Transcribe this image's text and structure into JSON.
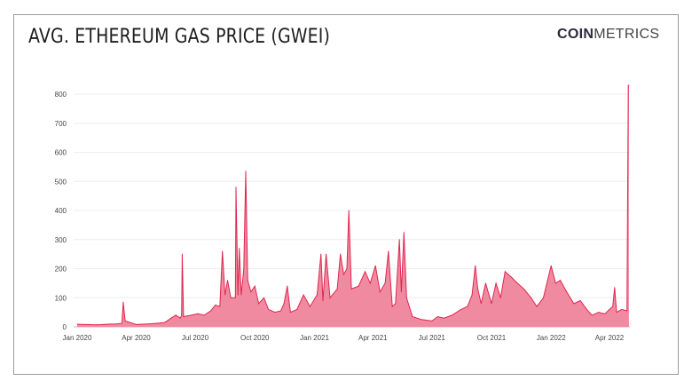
{
  "header": {
    "title": "AVG. ETHEREUM GAS PRICE (GWEI)",
    "logo_bold": "COIN",
    "logo_light": "METRICS"
  },
  "colors": {
    "fill": "#f08aa0",
    "line": "#e0264f",
    "grid": "#eeeeee"
  },
  "chart_data": {
    "type": "area",
    "title": "AVG. ETHEREUM GAS PRICE (GWEI)",
    "xlabel": "",
    "ylabel": "",
    "ylim": [
      0,
      800
    ],
    "yticks": [
      0,
      100,
      200,
      300,
      400,
      500,
      600,
      700,
      800
    ],
    "xticks": [
      {
        "date": "2020-01-01",
        "label": "Jan 2020"
      },
      {
        "date": "2020-04-01",
        "label": "Apr 2020"
      },
      {
        "date": "2020-07-01",
        "label": "Jul 2020"
      },
      {
        "date": "2020-10-01",
        "label": "Oct 2020"
      },
      {
        "date": "2021-01-01",
        "label": "Jan 2021"
      },
      {
        "date": "2021-04-01",
        "label": "Apr 2021"
      },
      {
        "date": "2021-07-01",
        "label": "Jul 2021"
      },
      {
        "date": "2021-10-01",
        "label": "Oct 2021"
      },
      {
        "date": "2022-01-01",
        "label": "Jan 2022"
      },
      {
        "date": "2022-04-01",
        "label": "Apr 2022"
      }
    ],
    "grid": true,
    "series": [
      {
        "points": [
          [
            "2020-01-01",
            9
          ],
          [
            "2020-01-15",
            8
          ],
          [
            "2020-02-01",
            7
          ],
          [
            "2020-02-15",
            9
          ],
          [
            "2020-03-01",
            10
          ],
          [
            "2020-03-10",
            12
          ],
          [
            "2020-03-12",
            85
          ],
          [
            "2020-03-15",
            20
          ],
          [
            "2020-04-01",
            8
          ],
          [
            "2020-04-20",
            10
          ],
          [
            "2020-05-01",
            12
          ],
          [
            "2020-05-15",
            15
          ],
          [
            "2020-05-25",
            30
          ],
          [
            "2020-06-01",
            40
          ],
          [
            "2020-06-08",
            30
          ],
          [
            "2020-06-10",
            40
          ],
          [
            "2020-06-11",
            250
          ],
          [
            "2020-06-13",
            35
          ],
          [
            "2020-06-25",
            40
          ],
          [
            "2020-07-05",
            45
          ],
          [
            "2020-07-15",
            40
          ],
          [
            "2020-07-25",
            55
          ],
          [
            "2020-08-01",
            75
          ],
          [
            "2020-08-08",
            70
          ],
          [
            "2020-08-12",
            260
          ],
          [
            "2020-08-16",
            110
          ],
          [
            "2020-08-20",
            160
          ],
          [
            "2020-08-25",
            100
          ],
          [
            "2020-09-01",
            100
          ],
          [
            "2020-09-02",
            480
          ],
          [
            "2020-09-05",
            110
          ],
          [
            "2020-09-07",
            270
          ],
          [
            "2020-09-10",
            110
          ],
          [
            "2020-09-14",
            200
          ],
          [
            "2020-09-17",
            535
          ],
          [
            "2020-09-20",
            160
          ],
          [
            "2020-09-25",
            120
          ],
          [
            "2020-10-01",
            140
          ],
          [
            "2020-10-07",
            80
          ],
          [
            "2020-10-15",
            100
          ],
          [
            "2020-10-22",
            60
          ],
          [
            "2020-11-01",
            50
          ],
          [
            "2020-11-10",
            55
          ],
          [
            "2020-11-15",
            80
          ],
          [
            "2020-11-20",
            140
          ],
          [
            "2020-11-25",
            50
          ],
          [
            "2020-12-05",
            60
          ],
          [
            "2020-12-15",
            110
          ],
          [
            "2020-12-25",
            70
          ],
          [
            "2021-01-05",
            110
          ],
          [
            "2021-01-11",
            250
          ],
          [
            "2021-01-14",
            90
          ],
          [
            "2021-01-19",
            250
          ],
          [
            "2021-01-25",
            100
          ],
          [
            "2021-02-05",
            130
          ],
          [
            "2021-02-10",
            250
          ],
          [
            "2021-02-15",
            180
          ],
          [
            "2021-02-20",
            200
          ],
          [
            "2021-02-23",
            400
          ],
          [
            "2021-02-27",
            130
          ],
          [
            "2021-03-10",
            140
          ],
          [
            "2021-03-20",
            190
          ],
          [
            "2021-03-28",
            150
          ],
          [
            "2021-04-05",
            210
          ],
          [
            "2021-04-12",
            120
          ],
          [
            "2021-04-20",
            150
          ],
          [
            "2021-04-25",
            260
          ],
          [
            "2021-05-01",
            70
          ],
          [
            "2021-05-06",
            80
          ],
          [
            "2021-05-12",
            300
          ],
          [
            "2021-05-15",
            120
          ],
          [
            "2021-05-19",
            325
          ],
          [
            "2021-05-23",
            100
          ],
          [
            "2021-06-01",
            35
          ],
          [
            "2021-06-15",
            25
          ],
          [
            "2021-07-01",
            20
          ],
          [
            "2021-07-10",
            35
          ],
          [
            "2021-07-20",
            30
          ],
          [
            "2021-08-01",
            40
          ],
          [
            "2021-08-15",
            60
          ],
          [
            "2021-08-25",
            70
          ],
          [
            "2021-09-01",
            110
          ],
          [
            "2021-09-06",
            210
          ],
          [
            "2021-09-10",
            130
          ],
          [
            "2021-09-15",
            80
          ],
          [
            "2021-09-22",
            150
          ],
          [
            "2021-10-01",
            80
          ],
          [
            "2021-10-08",
            150
          ],
          [
            "2021-10-15",
            100
          ],
          [
            "2021-10-22",
            190
          ],
          [
            "2021-11-01",
            170
          ],
          [
            "2021-11-10",
            150
          ],
          [
            "2021-11-20",
            130
          ],
          [
            "2021-12-01",
            100
          ],
          [
            "2021-12-10",
            70
          ],
          [
            "2021-12-20",
            100
          ],
          [
            "2022-01-01",
            210
          ],
          [
            "2022-01-08",
            150
          ],
          [
            "2022-01-15",
            160
          ],
          [
            "2022-01-25",
            120
          ],
          [
            "2022-02-05",
            80
          ],
          [
            "2022-02-15",
            90
          ],
          [
            "2022-02-25",
            60
          ],
          [
            "2022-03-05",
            40
          ],
          [
            "2022-03-15",
            50
          ],
          [
            "2022-03-25",
            45
          ],
          [
            "2022-04-01",
            60
          ],
          [
            "2022-04-06",
            70
          ],
          [
            "2022-04-09",
            135
          ],
          [
            "2022-04-12",
            50
          ],
          [
            "2022-04-20",
            60
          ],
          [
            "2022-04-28",
            55
          ],
          [
            "2022-04-30",
            830
          ],
          [
            "2022-05-01",
            830
          ]
        ]
      }
    ]
  }
}
